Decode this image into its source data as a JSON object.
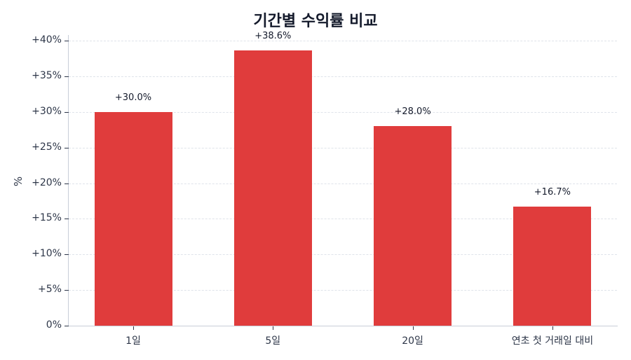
{
  "chart_data": {
    "type": "bar",
    "title": "기간별 수익률 비교",
    "xlabel": "",
    "ylabel": "%",
    "categories": [
      "1일",
      "5일",
      "20일",
      "연초 첫 거래일 대비"
    ],
    "values": [
      30.0,
      38.6,
      28.0,
      16.7
    ],
    "value_labels": [
      "+30.0%",
      "+38.6%",
      "+28.0%",
      "+16.7%"
    ],
    "ylim": [
      0,
      40
    ],
    "yticks": [
      0,
      5,
      10,
      15,
      20,
      25,
      30,
      35,
      40
    ],
    "ytick_labels": [
      "0%",
      "+5%",
      "+10%",
      "+15%",
      "+20%",
      "+25%",
      "+30%",
      "+35%",
      "+40%"
    ],
    "grid": "horizontal dashed",
    "legend": null,
    "bar_color": "#e03c3c"
  }
}
